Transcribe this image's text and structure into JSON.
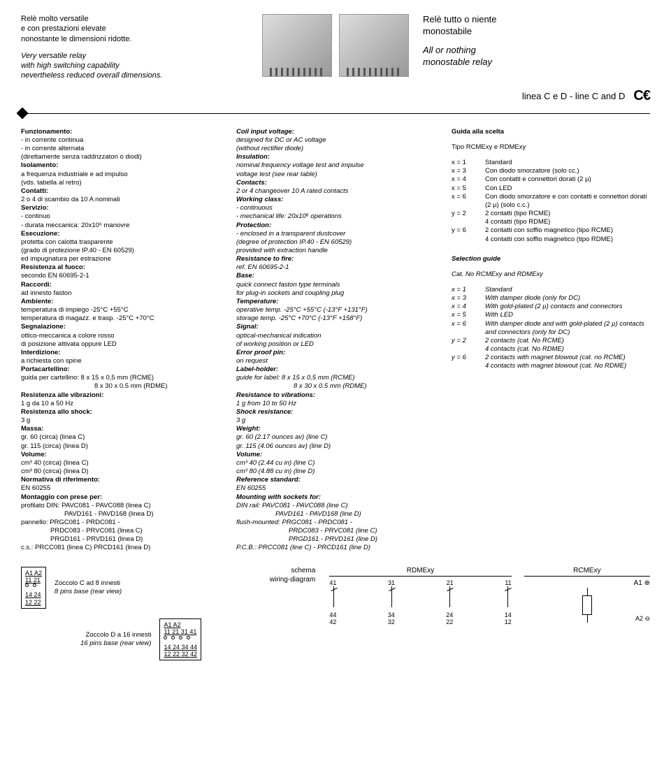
{
  "header": {
    "left_it_1": "Relè molto versatile",
    "left_it_2": "e con prestazioni elevate",
    "left_it_3": "nonostante le dimensioni ridotte.",
    "left_en_1": "Very versatile relay",
    "left_en_2": "with high switching capability",
    "left_en_3": "nevertheless reduced overall dimensions.",
    "right_it_1": "Relè tutto o niente",
    "right_it_2": "monostabile",
    "right_en_1": "All or nothing",
    "right_en_2": "monostable relay",
    "line_label": "linea C e D  -  line C and D",
    "ce": "C€"
  },
  "col1": {
    "h1": "Funzionamento:",
    "r1": "- in corrente continua",
    "r2": "- in corrente alternata",
    "r3": "(direttamente senza raddrizzatori o diodi)",
    "h2": "Isolamento:",
    "r4": "a frequenza industriale e ad impulso",
    "r5": "(vds. tabella al retro)",
    "h3": "Contatti:",
    "r6": "2 o 4 di scambio da 10 A nominali",
    "h4": "Servizio:",
    "r7": "- continuo",
    "r8": "- durata meccanica: 20x10⁶ manovre",
    "h5": "Esecuzione:",
    "r9": "protetta con calotta trasparente",
    "r10": "(grado di protezione IP.40 - EN 60529)",
    "r11": "ed impugnatura per estrazione",
    "h6": "Resistenza al fuoco:",
    "r12": "secondo EN 60695-2-1",
    "h7": "Raccordi:",
    "r13": "ad innesto faston",
    "h8": "Ambiente:",
    "r14": "temperatura di impiego -25°C +55°C",
    "r15": "temperatura di magazz. e trasp. -25°C +70°C",
    "h9": "Segnalazione:",
    "r16": "ottico-meccanica a colore rosso",
    "r17": "di posizione attivata oppure LED",
    "h10": "Interdizione:",
    "r18": "a richiesta con spine",
    "h11": "Portacartellino:",
    "r19": "guida per cartellino:  8 x 15 x 0,5 mm (RCME)",
    "r20": "8 x 30 x 0.5 mm (RDME)",
    "h12": "Resistenza alle vibrazioni:",
    "r21": "1 g da 10 a 50 Hz",
    "h13": "Resistenza allo shock:",
    "r22": "3 g",
    "h14": "Massa:",
    "r23": "gr. 60 (circa) (linea C)",
    "r24": "gr. 115 (circa) (linea D)",
    "h15": "Volume:",
    "r25": "cm³ 40 (circa) (linea C)",
    "r26": "cm³ 80 (circa) (linea D)",
    "h16": "Normativa di riferimento:",
    "r27": "EN 60255",
    "h17": "Montaggio con prese per:",
    "r28": "profilato DIN: PAVC081 - PAVC088 (linea C)",
    "r29": "PAVD161 - PAVD168 (linea D)",
    "r30": "pannello: PRGC081 - PRDC081 -",
    "r31": "PRDC083 - PRVC081 (linea C)",
    "r32": "PRGD161 - PRVD161 (linea D)",
    "r33": "c.s.:    PRCC081 (linea C)   PRCD161 (linea D)"
  },
  "col2": {
    "h1": "Coil input voltage:",
    "r1": "designed for DC or AC voltage",
    "r2": "(without rectifier diode)",
    "h2": "Insulation:",
    "r3": "nominal frequency voltage test and impulse",
    "r4": "voltage test (see rear table)",
    "h3": "Contacts:",
    "r5": "2 or 4 changeover 10 A rated contacts",
    "h4": "Working class:",
    "r6": "- continuous",
    "r7": "- mechanical life: 20x10⁶ operations",
    "h5": "Protection:",
    "r8": "- enclosed in a transparent dustcover",
    "r9": "(degree of protection IP.40 - EN 60529)",
    "r10": "provided with extraction handle",
    "h6": "Resistance to fire:",
    "r11": "ref. EN 60695-2-1",
    "h7": "Base:",
    "r12": "quick connect faston type terminals",
    "r13": "for plug-in sockets and coupling plug",
    "h8": "Temperature:",
    "r14": "operative temp. -25°C +55°C (-13°F +131°F)",
    "r15": "storage temp. -25°C +70°C (-13°F +158°F)",
    "h9": "Signal:",
    "r16": "optical-mechanical indication",
    "r17": "of working position or LED",
    "h10": "Error proof pin:",
    "r18": "on request",
    "h11": "Label-holder:",
    "r19": "guide for label:    8 x 15 x 0,5 mm (RCME)",
    "r20": "8 x 30 x 0.5 mm (RDME)",
    "h12": "Resistance to vibrations:",
    "r21": "1 g from 10 to 50 Hz",
    "h13": "Shock resistance:",
    "r22": "3 g",
    "h14": "Weight:",
    "r23": "gr. 60 (2.17 ounces av) (line C)",
    "r24": "gr. 115 (4.06 ounces av) (line D)",
    "h15": "Volume:",
    "r25": "cm³ 40 (2.44 cu in) (line C)",
    "r26": "cm³ 80 (4.88 cu in) (line D)",
    "h16": "Reference standard:",
    "r27": "EN 60255",
    "h17": "Mounting with sockets for:",
    "r28": "DIN rail:     PAVC081 - PAVC088 (line C)",
    "r29": "PAVD161 - PAVD168 (line D)",
    "r30": "flush-mounted:   PRGC081 - PRDC081 -",
    "r31": "PRDC083 - PRVC081 (line C)",
    "r32": "PRGD161 - PRVD161 (line D)",
    "r33": "P.C.B.: PRCC081 (line C) - PRCD161 (line D)"
  },
  "col3": {
    "h1": "Guida alla scelta",
    "h2": "Tipo RCMExy e RDMExy",
    "it": [
      [
        "x = 1",
        "Standard"
      ],
      [
        "x = 3",
        "Con diodo smorzatore (solo cc.)"
      ],
      [
        "x = 4",
        "Con contatti e connettori dorati (2 µ)"
      ],
      [
        "x = 5",
        "Con LED"
      ],
      [
        "x = 6",
        "Con diodo smorzatore e con contatti e connettori dorati (2 µ) (solo c.c.)"
      ],
      [
        "",
        ""
      ],
      [
        "y = 2",
        "2 contatti (tipo RCME)"
      ],
      [
        "",
        "4 contatti (tipo RDME)"
      ],
      [
        "y = 6",
        "2 contatti con soffio magnetico (tipo RCME)"
      ],
      [
        "",
        "4 contatti con soffio magnetico (tipo RDME)"
      ]
    ],
    "h3": "Selection guide",
    "h4": "Cat. No RCMExy and RDMExy",
    "en": [
      [
        "x = 1",
        "Standard"
      ],
      [
        "x = 3",
        "With damper diode (only for DC)"
      ],
      [
        "x = 4",
        "With gold-plated (2 µ) contacts and connectors"
      ],
      [
        "x = 5",
        "With LED"
      ],
      [
        "x = 6",
        "With damper diode and with gold-plated (2 µ) contacts and connectors (only for DC)"
      ],
      [
        "",
        ""
      ],
      [
        "y = 2",
        "2 contacts (cat. No RCME)"
      ],
      [
        "",
        "4 contacts (cat. No RDME)"
      ],
      [
        "y = 6",
        "2 contacts with magnet blowout (cat. no RCME)"
      ],
      [
        "",
        "4 contacts with magnet blowout (cat. No RDME)"
      ]
    ]
  },
  "footer": {
    "pin8_a": "A1 A2",
    "pin8_b": "11  21",
    "pin8_c": "14  24",
    "pin8_d": "12  22",
    "pin8_cap_it": "Zoccolo C ad 8 innesti",
    "pin8_cap_en": "8 pins base (rear view)",
    "pin16_a": "A1         A2",
    "pin16_b": "11 21 31 41",
    "pin16_c": "14 24 34 44",
    "pin16_d": "12 22 32 42",
    "pin16_cap_it": "Zoccolo D a 16 innesti",
    "pin16_cap_en": "16 pins base (rear view)",
    "schema_it": "schema",
    "schema_en": "wiring-diagram",
    "rdme_title": "RDMExy",
    "rcme_title": "RCMExy",
    "rdme_top": [
      "41",
      "31",
      "21",
      "11"
    ],
    "rdme_bot_a": [
      "44",
      "34",
      "24",
      "14"
    ],
    "rdme_bot_b": [
      "42",
      "32",
      "22",
      "12"
    ],
    "coil_top": "A1 ⊕",
    "coil_bot": "A2 ⊖"
  }
}
